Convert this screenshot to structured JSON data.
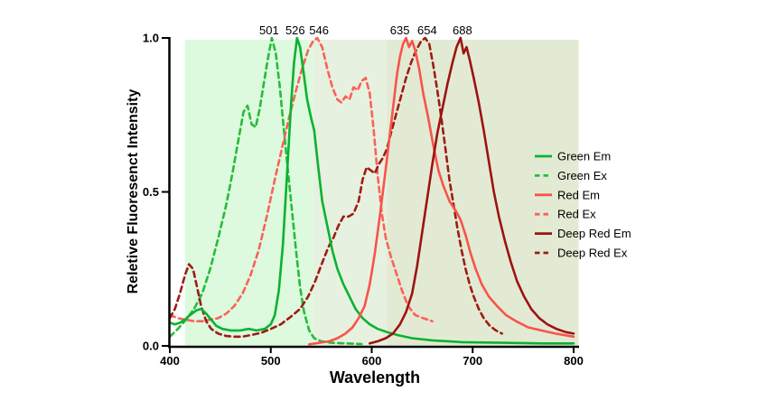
{
  "chart_data": {
    "type": "line",
    "title": "",
    "xlabel": "Wavelength",
    "ylabel": "Reletive Fluoresenct Intensity",
    "xlim": [
      400,
      800
    ],
    "ylim": [
      0.0,
      1.0
    ],
    "x_ticks": [
      400,
      500,
      600,
      700,
      800
    ],
    "y_ticks": [
      0.0,
      0.5,
      1.0
    ],
    "y_tick_labels": [
      "0.0",
      "0.5",
      "1.0"
    ],
    "grid": false,
    "legend_position": "right",
    "axis_color": "#000000",
    "peak_annotations": [
      {
        "label": "501",
        "nm": 501,
        "dx": -3
      },
      {
        "label": "526",
        "nm": 526,
        "dx": -2
      },
      {
        "label": "546",
        "nm": 546,
        "dx": 2
      },
      {
        "label": "635",
        "nm": 635,
        "dx": -8
      },
      {
        "label": "654",
        "nm": 654,
        "dx": 1
      },
      {
        "label": "688",
        "nm": 688,
        "dx": 2
      }
    ],
    "bands": [
      {
        "from_nm": 415,
        "to_nm": 542,
        "color": "#ddf9de"
      },
      {
        "from_nm": 542,
        "to_nm": 615,
        "color": "#e7f1df"
      },
      {
        "from_nm": 615,
        "to_nm": 805,
        "color": "#e3ead3"
      }
    ],
    "series": [
      {
        "name": "Green Ex",
        "style": "dashed",
        "color": "#27bc3a",
        "points": [
          [
            400,
            0.03
          ],
          [
            408,
            0.055
          ],
          [
            416,
            0.085
          ],
          [
            424,
            0.12
          ],
          [
            432,
            0.17
          ],
          [
            440,
            0.25
          ],
          [
            448,
            0.35
          ],
          [
            456,
            0.46
          ],
          [
            462,
            0.56
          ],
          [
            468,
            0.67
          ],
          [
            473,
            0.76
          ],
          [
            477,
            0.78
          ],
          [
            481,
            0.72
          ],
          [
            485,
            0.71
          ],
          [
            489,
            0.77
          ],
          [
            493,
            0.85
          ],
          [
            497,
            0.93
          ],
          [
            501,
            1.0
          ],
          [
            505,
            0.95
          ],
          [
            509,
            0.84
          ],
          [
            513,
            0.7
          ],
          [
            517,
            0.57
          ],
          [
            521,
            0.44
          ],
          [
            525,
            0.31
          ],
          [
            529,
            0.19
          ],
          [
            533,
            0.11
          ],
          [
            538,
            0.05
          ],
          [
            543,
            0.025
          ],
          [
            550,
            0.015
          ],
          [
            560,
            0.01
          ],
          [
            575,
            0.008
          ],
          [
            590,
            0.006
          ]
        ]
      },
      {
        "name": "Red Ex",
        "style": "dashed",
        "color": "#f9625a",
        "points": [
          [
            400,
            0.1
          ],
          [
            408,
            0.09
          ],
          [
            416,
            0.085
          ],
          [
            424,
            0.08
          ],
          [
            432,
            0.08
          ],
          [
            440,
            0.085
          ],
          [
            448,
            0.09
          ],
          [
            456,
            0.105
          ],
          [
            464,
            0.13
          ],
          [
            472,
            0.17
          ],
          [
            480,
            0.23
          ],
          [
            488,
            0.31
          ],
          [
            496,
            0.42
          ],
          [
            504,
            0.54
          ],
          [
            511,
            0.64
          ],
          [
            518,
            0.74
          ],
          [
            525,
            0.83
          ],
          [
            531,
            0.9
          ],
          [
            537,
            0.96
          ],
          [
            542,
            0.99
          ],
          [
            546,
            1.0
          ],
          [
            551,
            0.97
          ],
          [
            556,
            0.9
          ],
          [
            561,
            0.84
          ],
          [
            566,
            0.8
          ],
          [
            570,
            0.79
          ],
          [
            574,
            0.81
          ],
          [
            578,
            0.8
          ],
          [
            582,
            0.84
          ],
          [
            586,
            0.83
          ],
          [
            590,
            0.86
          ],
          [
            594,
            0.87
          ],
          [
            598,
            0.82
          ],
          [
            602,
            0.7
          ],
          [
            606,
            0.55
          ],
          [
            610,
            0.43
          ],
          [
            614,
            0.35
          ],
          [
            619,
            0.29
          ],
          [
            624,
            0.24
          ],
          [
            630,
            0.18
          ],
          [
            636,
            0.13
          ],
          [
            643,
            0.1
          ],
          [
            651,
            0.09
          ],
          [
            660,
            0.08
          ]
        ]
      },
      {
        "name": "Deep Red Ex",
        "style": "dashed",
        "color": "#9d1c15",
        "points": [
          [
            400,
            0.09
          ],
          [
            405,
            0.12
          ],
          [
            410,
            0.17
          ],
          [
            415,
            0.23
          ],
          [
            419,
            0.265
          ],
          [
            423,
            0.25
          ],
          [
            427,
            0.19
          ],
          [
            431,
            0.13
          ],
          [
            436,
            0.08
          ],
          [
            441,
            0.055
          ],
          [
            448,
            0.04
          ],
          [
            456,
            0.032
          ],
          [
            464,
            0.03
          ],
          [
            472,
            0.03
          ],
          [
            480,
            0.035
          ],
          [
            490,
            0.042
          ],
          [
            500,
            0.055
          ],
          [
            510,
            0.07
          ],
          [
            520,
            0.095
          ],
          [
            529,
            0.12
          ],
          [
            537,
            0.16
          ],
          [
            544,
            0.21
          ],
          [
            551,
            0.27
          ],
          [
            557,
            0.32
          ],
          [
            562,
            0.35
          ],
          [
            567,
            0.39
          ],
          [
            572,
            0.42
          ],
          [
            577,
            0.42
          ],
          [
            582,
            0.43
          ],
          [
            587,
            0.47
          ],
          [
            591,
            0.54
          ],
          [
            595,
            0.58
          ],
          [
            599,
            0.57
          ],
          [
            603,
            0.56
          ],
          [
            607,
            0.59
          ],
          [
            611,
            0.61
          ],
          [
            615,
            0.64
          ],
          [
            619,
            0.69
          ],
          [
            624,
            0.75
          ],
          [
            629,
            0.81
          ],
          [
            634,
            0.87
          ],
          [
            639,
            0.92
          ],
          [
            644,
            0.96
          ],
          [
            649,
            0.99
          ],
          [
            653,
            1.0
          ],
          [
            657,
            0.98
          ],
          [
            661,
            0.91
          ],
          [
            665,
            0.83
          ],
          [
            669,
            0.74
          ],
          [
            673,
            0.64
          ],
          [
            677,
            0.54
          ],
          [
            681,
            0.46
          ],
          [
            685,
            0.38
          ],
          [
            689,
            0.31
          ],
          [
            693,
            0.25
          ],
          [
            697,
            0.2
          ],
          [
            701,
            0.16
          ],
          [
            706,
            0.12
          ],
          [
            711,
            0.09
          ],
          [
            717,
            0.065
          ],
          [
            723,
            0.05
          ],
          [
            729,
            0.04
          ]
        ]
      },
      {
        "name": "Green Em",
        "style": "solid",
        "color": "#0ab232",
        "points": [
          [
            400,
            0.075
          ],
          [
            405,
            0.07
          ],
          [
            410,
            0.075
          ],
          [
            415,
            0.085
          ],
          [
            420,
            0.1
          ],
          [
            426,
            0.115
          ],
          [
            431,
            0.12
          ],
          [
            436,
            0.105
          ],
          [
            441,
            0.085
          ],
          [
            446,
            0.065
          ],
          [
            452,
            0.055
          ],
          [
            460,
            0.05
          ],
          [
            470,
            0.05
          ],
          [
            478,
            0.055
          ],
          [
            486,
            0.05
          ],
          [
            494,
            0.055
          ],
          [
            500,
            0.07
          ],
          [
            504,
            0.1
          ],
          [
            508,
            0.18
          ],
          [
            512,
            0.33
          ],
          [
            516,
            0.55
          ],
          [
            520,
            0.78
          ],
          [
            523,
            0.92
          ],
          [
            526,
            1.0
          ],
          [
            529,
            0.97
          ],
          [
            532,
            0.9
          ],
          [
            536,
            0.8
          ],
          [
            540,
            0.74
          ],
          [
            543,
            0.7
          ],
          [
            547,
            0.58
          ],
          [
            551,
            0.47
          ],
          [
            556,
            0.39
          ],
          [
            561,
            0.31
          ],
          [
            566,
            0.25
          ],
          [
            572,
            0.2
          ],
          [
            578,
            0.16
          ],
          [
            584,
            0.12
          ],
          [
            591,
            0.09
          ],
          [
            598,
            0.07
          ],
          [
            606,
            0.055
          ],
          [
            615,
            0.045
          ],
          [
            626,
            0.035
          ],
          [
            640,
            0.025
          ],
          [
            660,
            0.018
          ],
          [
            690,
            0.012
          ],
          [
            730,
            0.01
          ],
          [
            770,
            0.008
          ],
          [
            800,
            0.008
          ]
        ]
      },
      {
        "name": "Red Em",
        "style": "solid",
        "color": "#f8534b",
        "points": [
          [
            538,
            0.005
          ],
          [
            548,
            0.01
          ],
          [
            558,
            0.015
          ],
          [
            566,
            0.025
          ],
          [
            574,
            0.04
          ],
          [
            581,
            0.06
          ],
          [
            587,
            0.09
          ],
          [
            593,
            0.13
          ],
          [
            598,
            0.2
          ],
          [
            603,
            0.3
          ],
          [
            608,
            0.42
          ],
          [
            613,
            0.55
          ],
          [
            617,
            0.66
          ],
          [
            621,
            0.77
          ],
          [
            625,
            0.88
          ],
          [
            628,
            0.94
          ],
          [
            631,
            0.98
          ],
          [
            634,
            1.0
          ],
          [
            637,
            0.97
          ],
          [
            640,
            0.99
          ],
          [
            643,
            0.96
          ],
          [
            647,
            0.9
          ],
          [
            651,
            0.82
          ],
          [
            656,
            0.74
          ],
          [
            661,
            0.65
          ],
          [
            666,
            0.57
          ],
          [
            671,
            0.52
          ],
          [
            677,
            0.47
          ],
          [
            683,
            0.44
          ],
          [
            688,
            0.41
          ],
          [
            693,
            0.36
          ],
          [
            698,
            0.3
          ],
          [
            703,
            0.25
          ],
          [
            709,
            0.2
          ],
          [
            716,
            0.16
          ],
          [
            724,
            0.13
          ],
          [
            733,
            0.1
          ],
          [
            743,
            0.08
          ],
          [
            755,
            0.06
          ],
          [
            768,
            0.05
          ],
          [
            782,
            0.04
          ],
          [
            800,
            0.03
          ]
        ]
      },
      {
        "name": "Deep Red Em",
        "style": "solid",
        "color": "#9c1312",
        "points": [
          [
            598,
            0.008
          ],
          [
            606,
            0.015
          ],
          [
            614,
            0.025
          ],
          [
            621,
            0.04
          ],
          [
            628,
            0.07
          ],
          [
            634,
            0.11
          ],
          [
            640,
            0.17
          ],
          [
            645,
            0.26
          ],
          [
            650,
            0.37
          ],
          [
            655,
            0.48
          ],
          [
            660,
            0.59
          ],
          [
            665,
            0.69
          ],
          [
            670,
            0.77
          ],
          [
            675,
            0.85
          ],
          [
            680,
            0.92
          ],
          [
            684,
            0.97
          ],
          [
            688,
            1.0
          ],
          [
            691,
            0.95
          ],
          [
            694,
            0.97
          ],
          [
            697,
            0.93
          ],
          [
            701,
            0.87
          ],
          [
            706,
            0.79
          ],
          [
            711,
            0.7
          ],
          [
            716,
            0.6
          ],
          [
            721,
            0.5
          ],
          [
            726,
            0.42
          ],
          [
            732,
            0.34
          ],
          [
            738,
            0.27
          ],
          [
            744,
            0.21
          ],
          [
            751,
            0.16
          ],
          [
            758,
            0.12
          ],
          [
            766,
            0.09
          ],
          [
            774,
            0.07
          ],
          [
            783,
            0.055
          ],
          [
            792,
            0.045
          ],
          [
            800,
            0.04
          ]
        ]
      }
    ],
    "legend_order": [
      "Green Em",
      "Green Ex",
      "Red Em",
      "Red Ex",
      "Deep Red Em",
      "Deep Red Ex"
    ]
  }
}
